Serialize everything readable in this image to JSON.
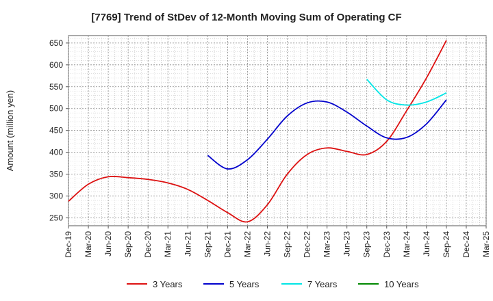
{
  "chart_data": {
    "type": "line",
    "title": "[7769]  Trend of StDev of 12-Month Moving Sum of Operating CF",
    "ylabel": "Amount (million yen)",
    "xlabel": "",
    "ylim": [
      232,
      667
    ],
    "yticks": [
      250,
      300,
      350,
      400,
      450,
      500,
      550,
      600,
      650
    ],
    "x_tick_labels": [
      "Dec-19",
      "Mar-20",
      "Jun-20",
      "Sep-20",
      "Dec-20",
      "Mar-21",
      "Jun-21",
      "Sep-21",
      "Dec-21",
      "Mar-22",
      "Jun-22",
      "Sep-22",
      "Dec-22",
      "Mar-23",
      "Jun-23",
      "Sep-23",
      "Dec-23",
      "Mar-24",
      "Jun-24",
      "Sep-24",
      "Dec-24",
      "Mar-25"
    ],
    "grid": true,
    "legend_position": "bottom",
    "series": [
      {
        "name": "3 Years",
        "color": "#dd1111",
        "x": [
          "Dec-19",
          "Mar-20",
          "Jun-20",
          "Sep-20",
          "Dec-20",
          "Mar-21",
          "Jun-21",
          "Sep-21",
          "Dec-21",
          "Mar-22",
          "Jun-22",
          "Sep-22",
          "Dec-22",
          "Mar-23",
          "Jun-23",
          "Sep-23",
          "Dec-23",
          "Mar-24",
          "Jun-24",
          "Sep-24"
        ],
        "values": [
          288,
          327,
          344,
          342,
          338,
          330,
          315,
          290,
          262,
          241,
          280,
          350,
          395,
          410,
          402,
          395,
          425,
          495,
          570,
          656
        ]
      },
      {
        "name": "5 Years",
        "color": "#0000cc",
        "x": [
          "Sep-21",
          "Dec-21",
          "Mar-22",
          "Jun-22",
          "Sep-22",
          "Dec-22",
          "Mar-23",
          "Jun-23",
          "Sep-23",
          "Dec-23",
          "Mar-24",
          "Jun-24",
          "Sep-24"
        ],
        "values": [
          393,
          362,
          383,
          430,
          483,
          513,
          515,
          492,
          460,
          433,
          434,
          465,
          520
        ]
      },
      {
        "name": "7 Years",
        "color": "#00e5e5",
        "x": [
          "Sep-23",
          "Dec-23",
          "Mar-24",
          "Jun-24",
          "Sep-24"
        ],
        "values": [
          567,
          520,
          508,
          515,
          536
        ]
      },
      {
        "name": "10 Years",
        "color": "#008800",
        "x": [],
        "values": []
      }
    ]
  }
}
